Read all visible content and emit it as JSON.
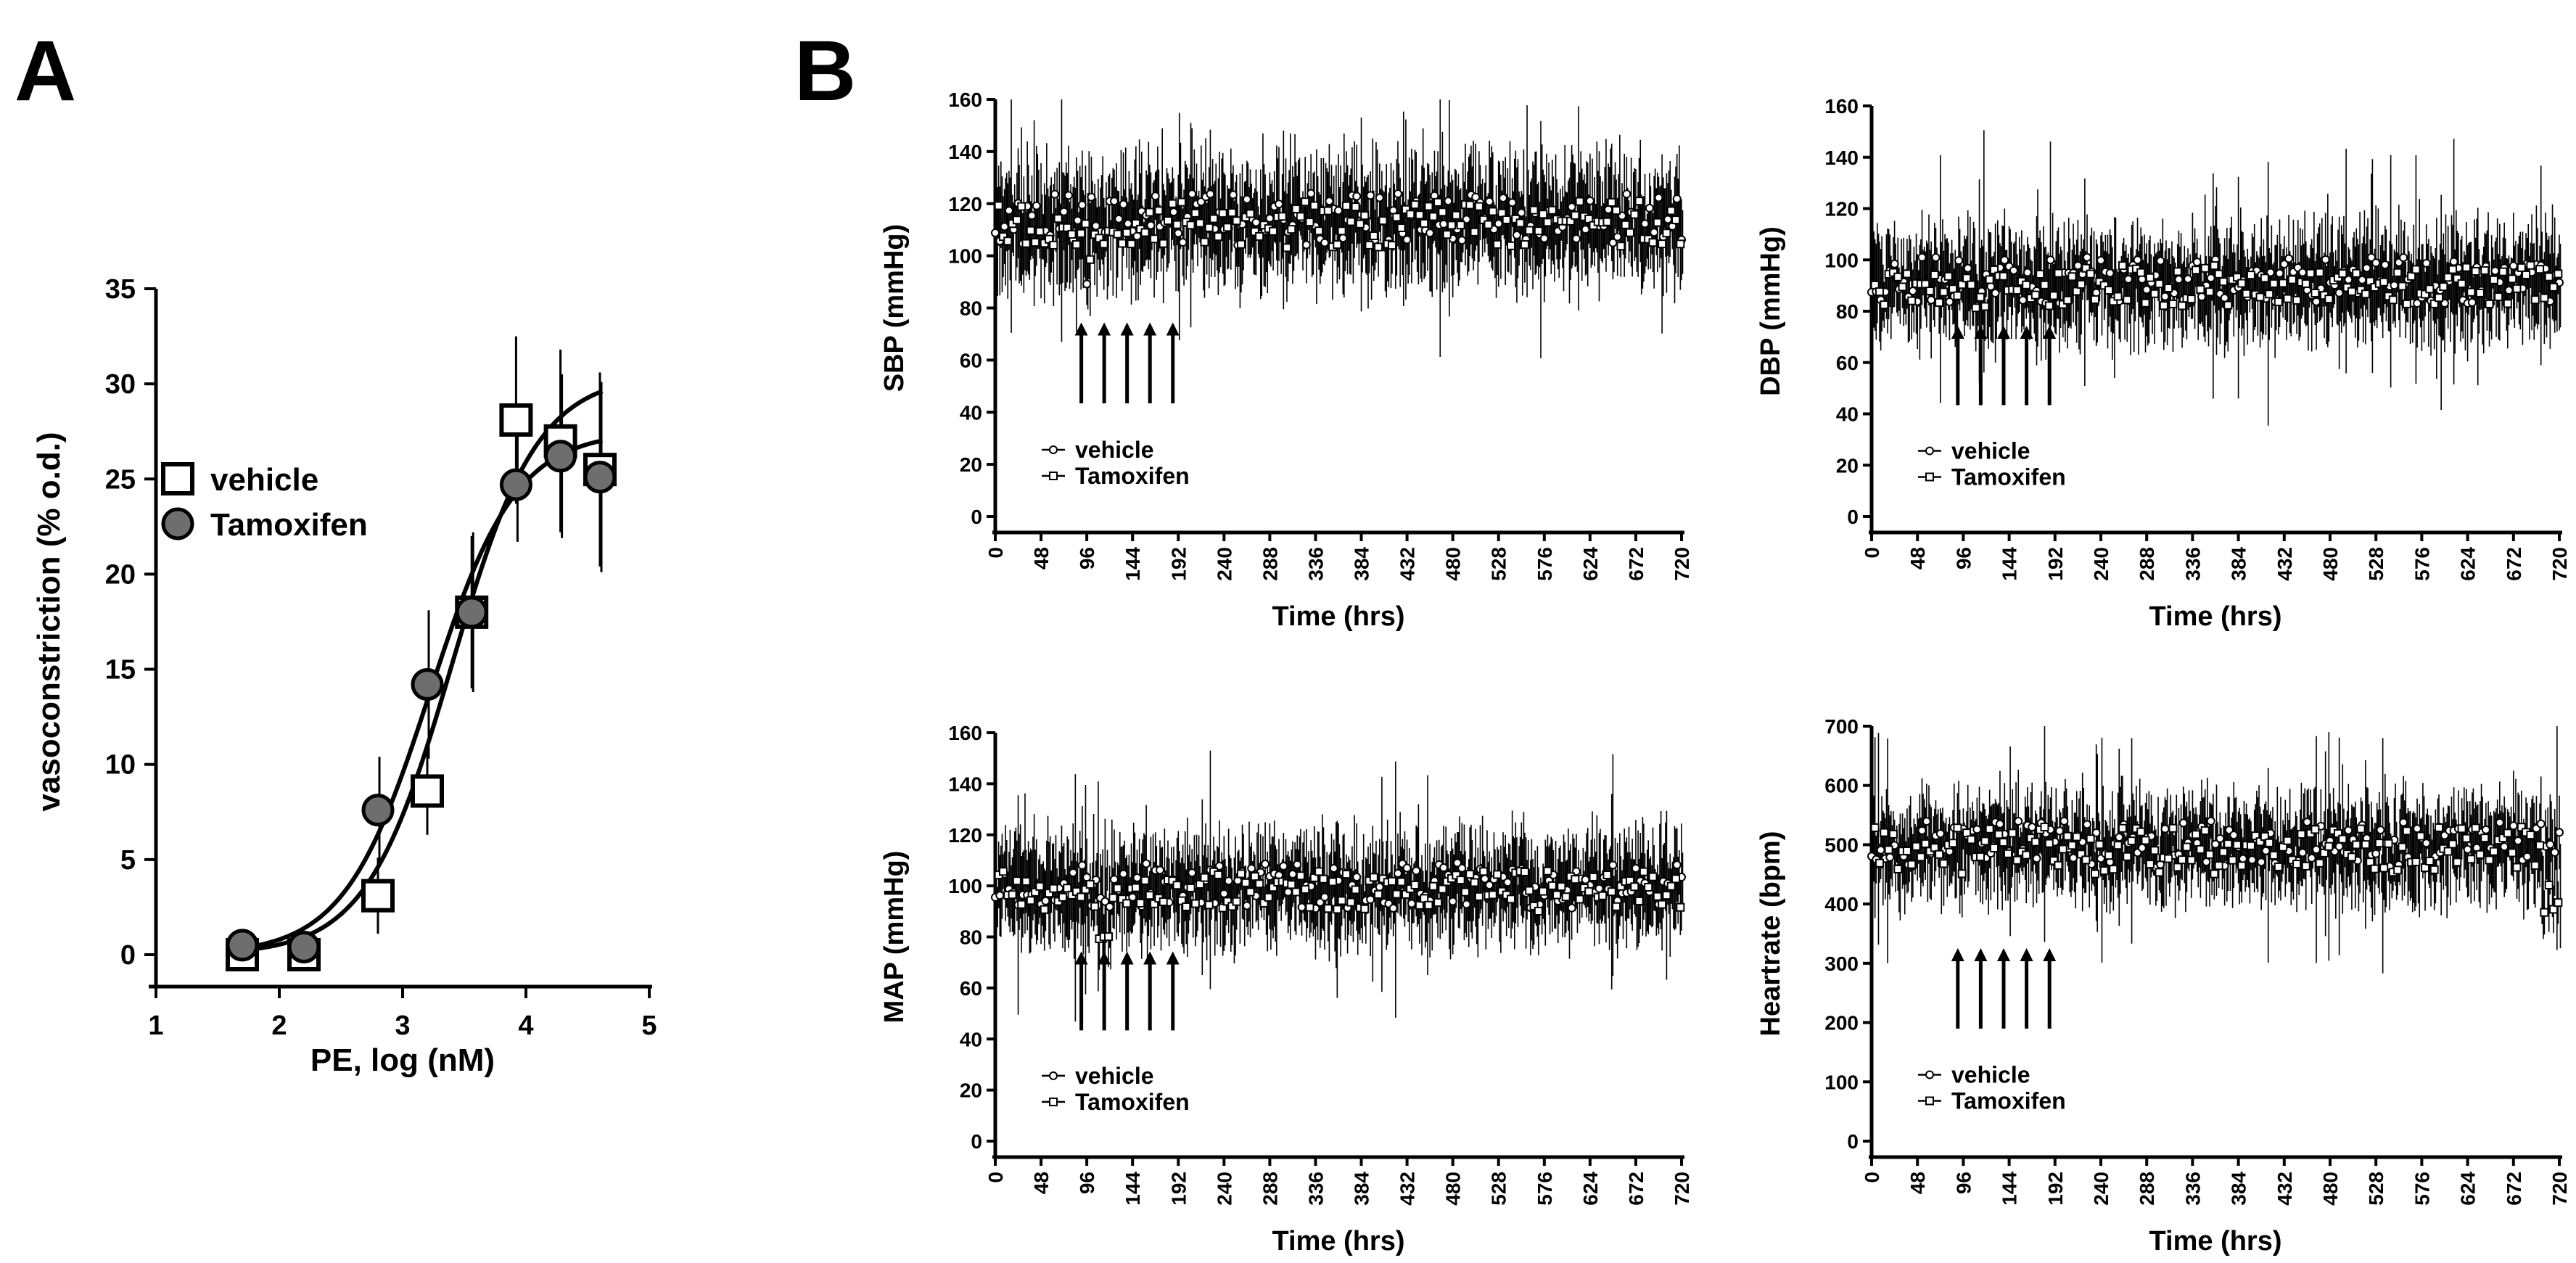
{
  "panel_labels": {
    "a": "A",
    "b": "B"
  },
  "chart_data": [
    {
      "id": "A",
      "type": "scatter",
      "xlabel": "PE, log (nM)",
      "ylabel": "vasoconstriction (% o.d.)",
      "xlim": [
        1,
        5
      ],
      "ylim": [
        0,
        35
      ],
      "xticks": [
        1,
        2,
        3,
        4,
        5
      ],
      "yticks": [
        0,
        5,
        10,
        15,
        20,
        25,
        30,
        35
      ],
      "legend_position": "left-middle",
      "series": [
        {
          "name": "vehicle",
          "marker": "open-square",
          "x": [
            1.7,
            2.2,
            2.8,
            3.2,
            3.56,
            3.92,
            4.28,
            4.6
          ],
          "y": [
            0.0,
            0.0,
            3.1,
            8.6,
            18.0,
            28.1,
            27.0,
            25.5
          ],
          "err": [
            0.3,
            0.4,
            2.0,
            2.3,
            4.0,
            4.4,
            4.8,
            5.1
          ],
          "fit": {
            "bottom": 0,
            "top": 30.5,
            "logEC50": 3.4,
            "hill": 1.25
          }
        },
        {
          "name": "Tamoxifen",
          "marker": "filled-circle",
          "x": [
            1.7,
            2.2,
            2.8,
            3.2,
            3.56,
            3.92,
            4.28,
            4.6
          ],
          "y": [
            0.5,
            0.4,
            7.6,
            14.2,
            18.0,
            24.7,
            26.2,
            25.1
          ],
          "err": [
            0.3,
            0.4,
            2.8,
            3.9,
            4.2,
            3.0,
            4.3,
            5.0
          ],
          "fit": {
            "bottom": 0,
            "top": 27.5,
            "logEC50": 3.22,
            "hill": 1.25
          }
        }
      ]
    },
    {
      "id": "SBP",
      "type": "scatter",
      "xlabel": "Time (hrs)",
      "ylabel": "SBP (mmHg)",
      "xlim": [
        0,
        720
      ],
      "ylim": [
        0,
        160
      ],
      "xticks": [
        0,
        48,
        96,
        144,
        192,
        240,
        288,
        336,
        384,
        432,
        480,
        528,
        576,
        624,
        672,
        720
      ],
      "yticks": [
        0,
        20,
        40,
        60,
        80,
        100,
        120,
        140,
        160
      ],
      "legend_position": "bottom-left",
      "arrows_at_hrs": [
        72,
        96,
        120,
        144,
        168
      ],
      "series": [
        {
          "name": "vehicle",
          "marker": "open-circle",
          "mean_approx": 114,
          "spread_approx": 10,
          "error_approx": 20
        },
        {
          "name": "Tamoxifen",
          "marker": "open-square",
          "mean_approx": 112,
          "spread_approx": 9,
          "error_approx": 18
        }
      ],
      "notable_dip": {
        "x_range": [
          96,
          120
        ],
        "min_value": 65
      }
    },
    {
      "id": "DBP",
      "type": "scatter",
      "xlabel": "Time (hrs)",
      "ylabel": "DBP (mmHg)",
      "xlim": [
        0,
        720
      ],
      "ylim": [
        0,
        160
      ],
      "xticks": [
        0,
        48,
        96,
        144,
        192,
        240,
        288,
        336,
        384,
        432,
        480,
        528,
        576,
        624,
        672,
        720
      ],
      "yticks": [
        0,
        20,
        40,
        60,
        80,
        100,
        120,
        140,
        160
      ],
      "legend_position": "bottom-left",
      "arrows_at_hrs": [
        72,
        96,
        120,
        144,
        168
      ],
      "series": [
        {
          "name": "vehicle",
          "marker": "open-circle",
          "mean_approx": 92,
          "spread_approx": 9,
          "error_approx": 18
        },
        {
          "name": "Tamoxifen",
          "marker": "open-square",
          "mean_approx": 90,
          "spread_approx": 8,
          "error_approx": 16
        }
      ],
      "notable_dip": {
        "x_range": [
          96,
          120
        ],
        "min_value": 60
      }
    },
    {
      "id": "MAP",
      "type": "scatter",
      "xlabel": "Time (hrs)",
      "ylabel": "MAP (mmHg)",
      "xlim": [
        0,
        720
      ],
      "ylim": [
        0,
        160
      ],
      "xticks": [
        0,
        48,
        96,
        144,
        192,
        240,
        288,
        336,
        384,
        432,
        480,
        528,
        576,
        624,
        672,
        720
      ],
      "yticks": [
        0,
        20,
        40,
        60,
        80,
        100,
        120,
        140,
        160
      ],
      "legend_position": "bottom-left",
      "arrows_at_hrs": [
        72,
        96,
        120,
        144,
        168
      ],
      "series": [
        {
          "name": "vehicle",
          "marker": "open-circle",
          "mean_approx": 100,
          "spread_approx": 9,
          "error_approx": 18
        },
        {
          "name": "Tamoxifen",
          "marker": "open-square",
          "mean_approx": 98,
          "spread_approx": 8,
          "error_approx": 16
        }
      ],
      "notable_dip": {
        "x_range": [
          96,
          120
        ],
        "min_value": 55
      }
    },
    {
      "id": "HR",
      "type": "scatter",
      "xlabel": "Time (hrs)",
      "ylabel": "Heartrate (bpm)",
      "xlim": [
        0,
        720
      ],
      "ylim": [
        0,
        700
      ],
      "xticks": [
        0,
        48,
        96,
        144,
        192,
        240,
        288,
        336,
        384,
        432,
        480,
        528,
        576,
        624,
        672,
        720
      ],
      "yticks": [
        0,
        100,
        200,
        300,
        400,
        500,
        600,
        700
      ],
      "legend_position": "bottom-left",
      "arrows_at_hrs": [
        72,
        96,
        120,
        144,
        168
      ],
      "series": [
        {
          "name": "vehicle",
          "marker": "open-circle",
          "mean_approx": 500,
          "spread_approx": 40,
          "error_approx": 70
        },
        {
          "name": "Tamoxifen",
          "marker": "open-square",
          "mean_approx": 490,
          "spread_approx": 40,
          "error_approx": 70
        }
      ],
      "notable_dip": {
        "x_range": [
          700,
          720
        ],
        "min_value": 270
      }
    }
  ]
}
